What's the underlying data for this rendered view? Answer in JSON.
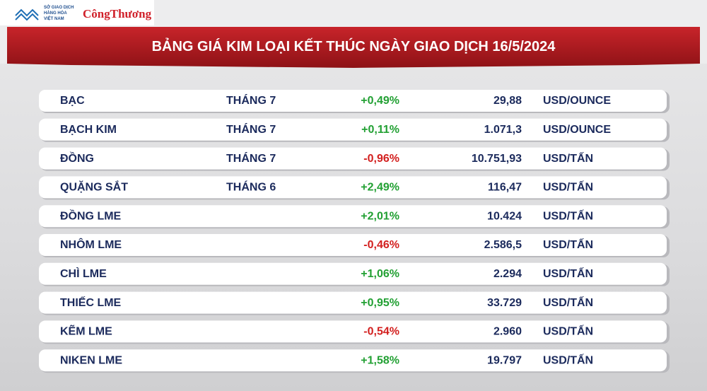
{
  "header": {
    "org_lines": [
      "SỞ GIAO DỊCH",
      "HÀNG HÓA",
      "VIỆT NAM"
    ],
    "brand": "CôngThương"
  },
  "title": "BẢNG GIÁ KIM LOẠI KẾT THÚC NGÀY GIAO DỊCH 16/5/2024",
  "table": {
    "rows": [
      {
        "name": "BẠC",
        "term": "THÁNG 7",
        "change": "+0,49%",
        "price": "29,88",
        "unit": "USD/OUNCE"
      },
      {
        "name": "BẠCH KIM",
        "term": "THÁNG 7",
        "change": "+0,11%",
        "price": "1.071,3",
        "unit": "USD/OUNCE"
      },
      {
        "name": "ĐỒNG",
        "term": "THÁNG 7",
        "change": "-0,96%",
        "price": "10.751,93",
        "unit": "USD/TẤN"
      },
      {
        "name": "QUẶNG SẮT",
        "term": "THÁNG 6",
        "change": "+2,49%",
        "price": "116,47",
        "unit": "USD/TẤN"
      },
      {
        "name": "ĐỒNG LME",
        "change": "+2,01%",
        "price": "10.424",
        "unit": "USD/TẤN"
      },
      {
        "name": "NHÔM LME",
        "change": "-0,46%",
        "price": "2.586,5",
        "unit": "USD/TẤN"
      },
      {
        "name": "CHÌ LME",
        "change": "+1,06%",
        "price": "2.294",
        "unit": "USD/TẤN"
      },
      {
        "name": "THIẾC LME",
        "change": "+0,95%",
        "price": "33.729",
        "unit": "USD/TẤN"
      },
      {
        "name": "KẼM LME",
        "change": "-0,54%",
        "price": "2.960",
        "unit": "USD/TẤN"
      },
      {
        "name": "NIKEN LME",
        "change": "+1,58%",
        "price": "19.797",
        "unit": "USD/TẤN"
      }
    ]
  }
}
